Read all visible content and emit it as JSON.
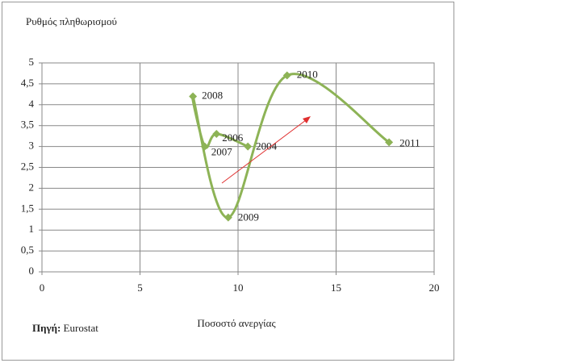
{
  "chart_data": {
    "type": "scatter",
    "y_label": "Ρυθμός πληθωρισμού",
    "x_label": "Ποσοστό ανεργίας",
    "source_label": "Πηγή:",
    "source": "Eurostat",
    "series": [
      {
        "color": "#8db356",
        "x": [
          10.5,
          8.9,
          8.3,
          7.7,
          9.5,
          12.5,
          17.7
        ],
        "values": [
          3.0,
          3.3,
          3.0,
          4.2,
          1.3,
          4.7,
          3.1
        ],
        "point_labels": [
          "2004",
          "2006",
          "2007",
          "2008",
          "2009",
          "2010",
          "2011"
        ]
      }
    ],
    "xlim": [
      0,
      20
    ],
    "xticks": [
      0,
      5,
      10,
      15,
      20
    ],
    "ylim": [
      0,
      5
    ],
    "yticks": [
      0,
      {
        "value": 0.5,
        "label": "0,5"
      },
      1,
      {
        "value": 1.5,
        "label": "1,5"
      },
      2,
      {
        "value": 2.5,
        "label": "2,5"
      },
      3,
      {
        "value": 3.5,
        "label": "3,5"
      },
      4,
      {
        "value": 4.5,
        "label": "4,5"
      },
      5
    ],
    "grid": true,
    "smooth": true
  }
}
